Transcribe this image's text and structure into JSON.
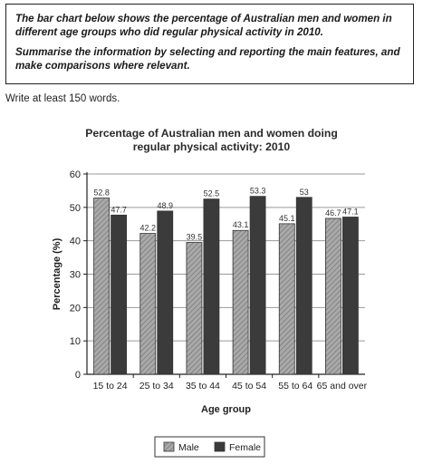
{
  "task": {
    "line1": "The bar chart below shows the percentage of Australian men and women in different age groups who did regular physical activity in 2010.",
    "line2": "Summarise the information by selecting and reporting the main features, and make comparisons where relevant."
  },
  "instruction": "Write at least 150 words.",
  "chart_data": {
    "type": "bar",
    "title_line1": "Percentage of Australian men and women doing",
    "title_line2": "regular physical activity: 2010",
    "xlabel": "Age group",
    "ylabel": "Percentage (%)",
    "ylim": [
      0,
      60
    ],
    "yticks": [
      0,
      10,
      20,
      30,
      40,
      50,
      60
    ],
    "grid": true,
    "legend_position": "bottom-center",
    "categories": [
      "15 to 24",
      "25 to 34",
      "35 to 44",
      "45 to 54",
      "55 to 64",
      "65 and over"
    ],
    "series": [
      {
        "name": "Male",
        "values": [
          52.8,
          42.2,
          39.5,
          43.1,
          45.1,
          46.7
        ],
        "labels": [
          "52.8",
          "42.2",
          "39.5",
          "43.1",
          "45.1",
          "46.7"
        ],
        "color": "#a9a9a9",
        "pattern": "hatched"
      },
      {
        "name": "Female",
        "values": [
          47.7,
          48.9,
          52.5,
          53.3,
          53,
          47.1
        ],
        "labels": [
          "47.7",
          "48.9",
          "52.5",
          "53.3",
          "53",
          "47.1"
        ],
        "color": "#3b3b3b",
        "pattern": "solid"
      }
    ]
  }
}
